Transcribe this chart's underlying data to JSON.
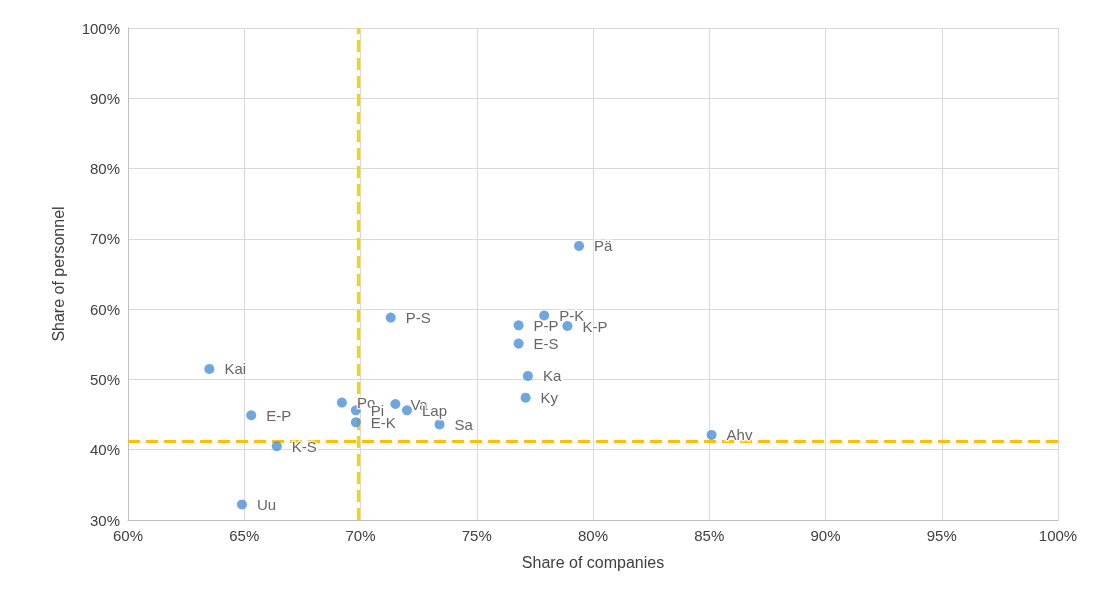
{
  "chart_data": {
    "type": "scatter",
    "xlabel": "Share of companies",
    "ylabel": "Share of personnel",
    "xlim": [
      60,
      100
    ],
    "ylim": [
      30,
      100
    ],
    "xticks": [
      {
        "value": 60,
        "label": "60%"
      },
      {
        "value": 65,
        "label": "65%"
      },
      {
        "value": 70,
        "label": "70%"
      },
      {
        "value": 75,
        "label": "75%"
      },
      {
        "value": 80,
        "label": "80%"
      },
      {
        "value": 85,
        "label": "85%"
      },
      {
        "value": 90,
        "label": "90%"
      },
      {
        "value": 95,
        "label": "95%"
      },
      {
        "value": 100,
        "label": "100%"
      }
    ],
    "yticks": [
      {
        "value": 30,
        "label": "30%"
      },
      {
        "value": 40,
        "label": "40%"
      },
      {
        "value": 50,
        "label": "50%"
      },
      {
        "value": 60,
        "label": "60%"
      },
      {
        "value": 70,
        "label": "70%"
      },
      {
        "value": 80,
        "label": "80%"
      },
      {
        "value": 90,
        "label": "90%"
      },
      {
        "value": 100,
        "label": "100%"
      }
    ],
    "grid": true,
    "legend": false,
    "marker": "circle",
    "series": [
      {
        "name": "Kai",
        "color": "#4a90d9",
        "x": [
          63.5
        ],
        "values": [
          51.5
        ]
      },
      {
        "name": "E-P",
        "color": "#4a90d9",
        "x": [
          65.3
        ],
        "values": [
          44.9
        ]
      },
      {
        "name": "K-S",
        "color": "#4a90d9",
        "x": [
          66.4
        ],
        "values": [
          40.5
        ]
      },
      {
        "name": "Uu",
        "color": "#4a90d9",
        "x": [
          64.9
        ],
        "values": [
          32.2
        ]
      },
      {
        "name": "Po",
        "color": "#4a90d9",
        "x": [
          69.2
        ],
        "values": [
          46.7
        ]
      },
      {
        "name": "Pi",
        "color": "#4a90d9",
        "x": [
          69.8
        ],
        "values": [
          45.6
        ]
      },
      {
        "name": "E-K",
        "color": "#4a90d9",
        "x": [
          69.8
        ],
        "values": [
          43.9
        ]
      },
      {
        "name": "Va",
        "color": "#4a90d9",
        "x": [
          71.5
        ],
        "values": [
          46.5
        ]
      },
      {
        "name": "Lap",
        "color": "#4a90d9",
        "x": [
          72.0
        ],
        "values": [
          45.6
        ]
      },
      {
        "name": "Sa",
        "color": "#4a90d9",
        "x": [
          73.4
        ],
        "values": [
          43.6
        ]
      },
      {
        "name": "P-S",
        "color": "#4a90d9",
        "x": [
          71.3
        ],
        "values": [
          58.8
        ]
      },
      {
        "name": "Pä",
        "color": "#4a90d9",
        "x": [
          79.4
        ],
        "values": [
          69.0
        ]
      },
      {
        "name": "P-K",
        "color": "#4a90d9",
        "x": [
          77.9
        ],
        "values": [
          59.1
        ]
      },
      {
        "name": "P-P",
        "color": "#4a90d9",
        "x": [
          76.8
        ],
        "values": [
          57.7
        ]
      },
      {
        "name": "K-P",
        "color": "#4a90d9",
        "x": [
          78.9
        ],
        "values": [
          57.6
        ]
      },
      {
        "name": "E-S",
        "color": "#4a90d9",
        "x": [
          76.8
        ],
        "values": [
          55.1
        ]
      },
      {
        "name": "Ka",
        "color": "#4a90d9",
        "x": [
          77.2
        ],
        "values": [
          50.5
        ]
      },
      {
        "name": "Ky",
        "color": "#4a90d9",
        "x": [
          77.1
        ],
        "values": [
          47.4
        ]
      },
      {
        "name": "Ahv",
        "color": "#4a90d9",
        "x": [
          85.1
        ],
        "values": [
          42.1
        ]
      }
    ],
    "ref_lines": [
      {
        "axis": "x",
        "value": 69.9,
        "color": "#f2d21b",
        "line_style": "dashed"
      },
      {
        "axis": "y",
        "value": 41.2,
        "color": "#ffc000",
        "line_style": "dashed"
      }
    ]
  }
}
